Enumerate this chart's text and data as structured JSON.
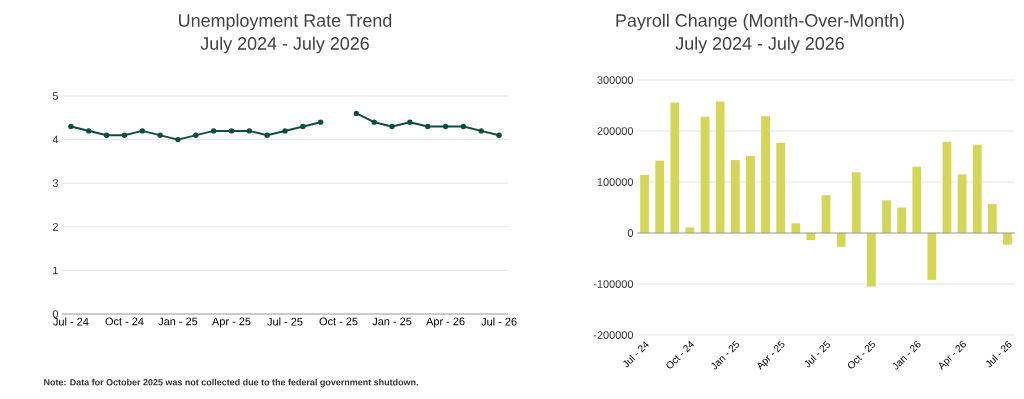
{
  "chart_data": [
    {
      "type": "line",
      "title": "Unemployment Rate Trend",
      "subtitle": "July 2024 - July 2026",
      "categories": [
        "Jul - 24",
        null,
        null,
        "Oct - 24",
        null,
        null,
        "Jan - 25",
        null,
        null,
        "Apr - 25",
        null,
        null,
        "Jul - 25",
        null,
        null,
        "Oct - 25",
        null,
        null,
        "Jan - 25",
        null,
        null,
        "Apr - 26",
        null,
        null,
        "Jul - 26"
      ],
      "values": [
        4.3,
        4.2,
        4.1,
        4.1,
        4.2,
        4.1,
        4.0,
        4.1,
        4.2,
        4.2,
        4.2,
        4.1,
        4.2,
        4.3,
        4.4,
        null,
        4.6,
        4.4,
        4.3,
        4.4,
        4.3,
        4.3,
        4.3,
        4.2,
        4.1
      ],
      "color": "#0f4d3c",
      "marker": "circle",
      "ylim": [
        0,
        5
      ],
      "yticks": [
        0,
        1,
        2,
        3,
        4,
        5
      ],
      "grid": "y",
      "annotations": [
        "Note: Data for October 2025 was not collected due to the federal government shutdown."
      ]
    },
    {
      "type": "bar",
      "title": "Payroll Change (Month-Over-Month)",
      "subtitle": "July 2024 - July 2026",
      "categories": [
        "Jul - 24",
        null,
        null,
        "Oct - 24",
        null,
        null,
        "Jan - 25",
        null,
        null,
        "Apr - 25",
        null,
        null,
        "Jul - 25",
        null,
        null,
        "Oct - 25",
        null,
        null,
        "Jan - 26",
        null,
        null,
        "Apr - 26",
        null,
        null,
        "Jul - 26"
      ],
      "values": [
        114000,
        142000,
        256000,
        11000,
        228000,
        258000,
        143000,
        151000,
        229000,
        177000,
        19000,
        -14000,
        74000,
        -27000,
        119000,
        -105000,
        64000,
        50000,
        130000,
        -92000,
        179000,
        115000,
        173000,
        57000,
        -23000
      ],
      "color": "#d4d65a",
      "ylim": [
        -200000,
        300000
      ],
      "yticks": [
        -200000,
        -100000,
        0,
        100000,
        200000,
        300000
      ],
      "grid": "y"
    }
  ]
}
